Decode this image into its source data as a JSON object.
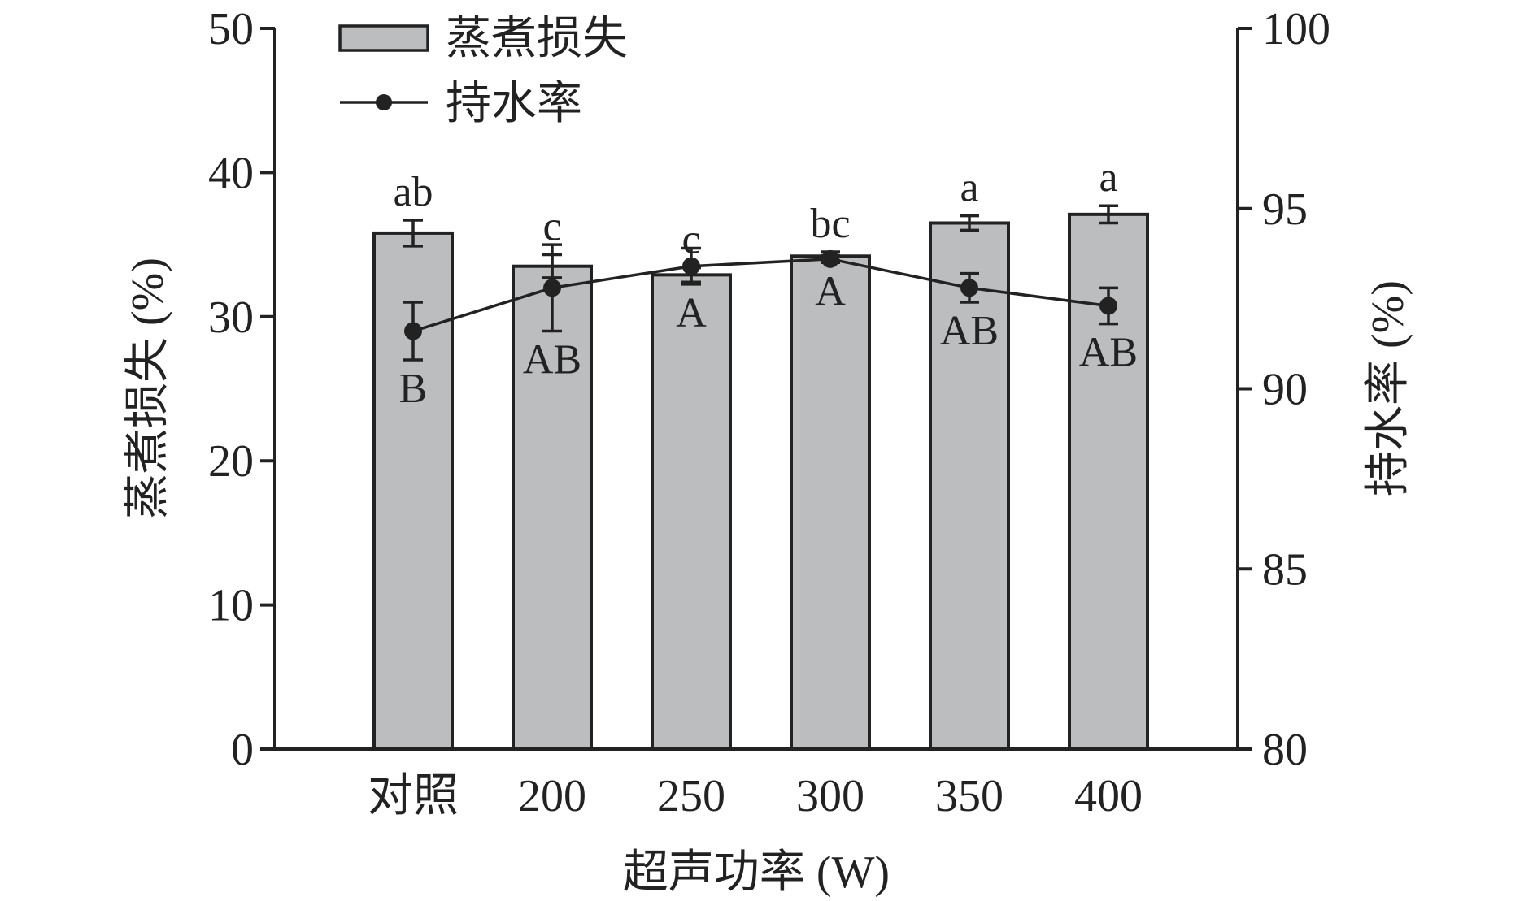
{
  "chart_data": {
    "type": "bar",
    "xlabel": "超声功率 (W)",
    "categories": [
      "对照",
      "200",
      "250",
      "300",
      "350",
      "400"
    ],
    "y_left": {
      "label": "蒸煮损失 (%)",
      "lim": [
        0,
        50
      ],
      "ticks": [
        0,
        10,
        20,
        30,
        40,
        50
      ]
    },
    "y_right": {
      "label": "持水率 (%)",
      "lim": [
        80,
        100
      ],
      "ticks": [
        80,
        85,
        90,
        95,
        100
      ]
    },
    "series": [
      {
        "name": "蒸煮损失",
        "type": "bar",
        "axis": "left",
        "values": [
          35.8,
          33.5,
          32.9,
          34.2,
          36.5,
          37.1
        ],
        "errors": [
          0.9,
          0.8,
          0.5,
          0.3,
          0.5,
          0.6
        ],
        "labels": [
          "ab",
          "c",
          "c",
          "bc",
          "a",
          "a"
        ]
      },
      {
        "name": "持水率",
        "type": "line",
        "axis": "right",
        "values": [
          91.6,
          92.8,
          93.4,
          93.6,
          92.8,
          92.3
        ],
        "errors": [
          0.8,
          1.2,
          0.5,
          0.1,
          0.4,
          0.5
        ],
        "labels": [
          "B",
          "AB",
          "A",
          "A",
          "AB",
          "AB"
        ]
      }
    ],
    "legend": "top-left",
    "grid": false,
    "colors": {
      "bar_fill": "#bcbdbf",
      "stroke": "#222222"
    }
  }
}
